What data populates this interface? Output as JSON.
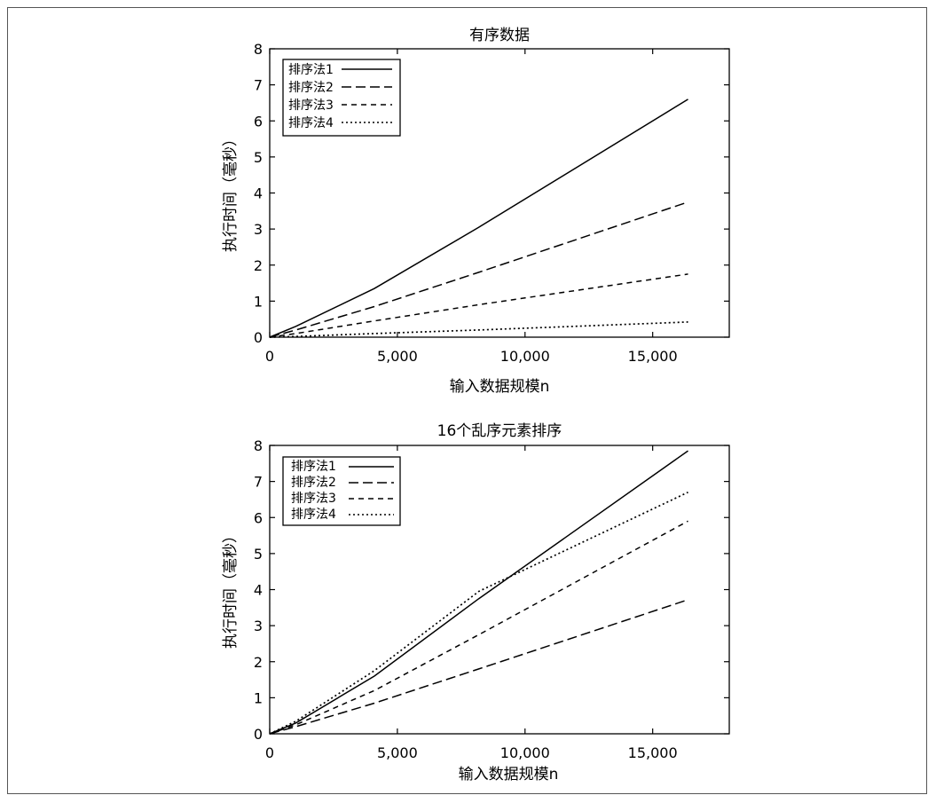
{
  "chart_data": [
    {
      "type": "line",
      "title": "有序数据",
      "xlabel": "输入数据规模n",
      "ylabel": "执行时间（毫秒）",
      "xlim": [
        0,
        18000
      ],
      "ylim": [
        0,
        8
      ],
      "xticks": [
        0,
        5000,
        10000,
        15000
      ],
      "xtick_labels": [
        "0",
        "5,000",
        "10,000",
        "15,000"
      ],
      "yticks": [
        0,
        1,
        2,
        3,
        4,
        5,
        6,
        7,
        8
      ],
      "ytick_labels": [
        "0",
        "1",
        "2",
        "3",
        "4",
        "5",
        "6",
        "7",
        "8"
      ],
      "legend": "top-left",
      "grid": false,
      "series": [
        {
          "name": "排序法1",
          "style": "solid",
          "x": [
            0,
            1024,
            4096,
            8192,
            16384
          ],
          "y": [
            0,
            0.3,
            1.35,
            3.05,
            6.6
          ]
        },
        {
          "name": "排序法2",
          "style": "long-dash",
          "x": [
            0,
            1024,
            4096,
            8192,
            16384
          ],
          "y": [
            0,
            0.2,
            0.85,
            1.8,
            3.75
          ]
        },
        {
          "name": "排序法3",
          "style": "dash",
          "x": [
            0,
            1024,
            4096,
            8192,
            16384
          ],
          "y": [
            0,
            0.1,
            0.45,
            0.9,
            1.75
          ]
        },
        {
          "name": "排序法4",
          "style": "dot",
          "x": [
            0,
            1024,
            4096,
            8192,
            16384
          ],
          "y": [
            0,
            0.02,
            0.1,
            0.2,
            0.42
          ]
        }
      ]
    },
    {
      "type": "line",
      "title": "16个乱序元素排序",
      "xlabel": "输入数据规模n",
      "ylabel": "执行时间（毫秒）",
      "xlim": [
        0,
        18000
      ],
      "ylim": [
        0,
        8
      ],
      "xticks": [
        0,
        5000,
        10000,
        15000
      ],
      "xtick_labels": [
        "0",
        "5,000",
        "10,000",
        "15,000"
      ],
      "yticks": [
        0,
        1,
        2,
        3,
        4,
        5,
        6,
        7,
        8
      ],
      "ytick_labels": [
        "0",
        "1",
        "2",
        "3",
        "4",
        "5",
        "6",
        "7",
        "8"
      ],
      "legend": "top-left",
      "grid": false,
      "series": [
        {
          "name": "排序法1",
          "style": "solid",
          "x": [
            0,
            1024,
            4096,
            8192,
            16384
          ],
          "y": [
            0,
            0.3,
            1.6,
            3.75,
            7.85
          ]
        },
        {
          "name": "排序法2",
          "style": "long-dash",
          "x": [
            0,
            1024,
            4096,
            8192,
            16384
          ],
          "y": [
            0,
            0.2,
            0.85,
            1.8,
            3.72
          ]
        },
        {
          "name": "排序法3",
          "style": "dash",
          "x": [
            0,
            1024,
            4096,
            8192,
            16384
          ],
          "y": [
            0,
            0.25,
            1.2,
            2.75,
            5.9
          ]
        },
        {
          "name": "排序法4",
          "style": "dot",
          "x": [
            0,
            1024,
            4096,
            8192,
            16384
          ],
          "y": [
            0,
            0.35,
            1.75,
            3.95,
            6.7
          ]
        }
      ]
    }
  ]
}
